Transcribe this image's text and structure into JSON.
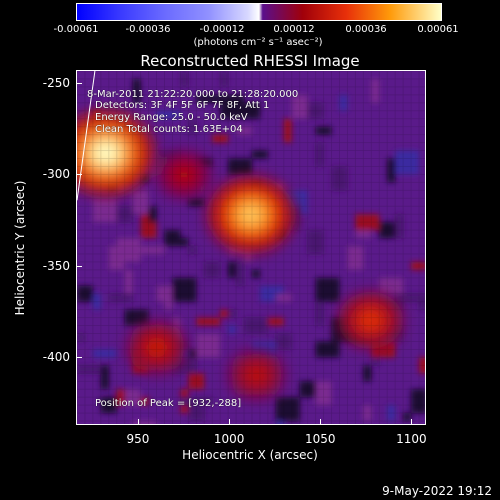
{
  "colorbar": {
    "ticks": [
      "-0.00061",
      "-0.00036",
      "-0.00012",
      "0.00012",
      "0.00036",
      "0.00061"
    ],
    "units": "(photons cm⁻² s⁻¹ asec⁻²)"
  },
  "annotations": {
    "time_range": "8-Mar-2011 21:22:20.000 to 21:28:20.000",
    "detectors": "Detectors: 3F 4F 5F 6F 7F 8F, Att 1",
    "energy_range": "Energy Range: 25.0 - 50.0 keV",
    "clean": "Clean     Total counts: 1.63E+04",
    "peak": "Position of Peak = [932,-288]"
  },
  "timestamp": "9-May-2022 19:12",
  "colors": {
    "background": "#000000",
    "low": "#5a1a8a",
    "mid": "#d02010",
    "high": "#ffffc0"
  },
  "chart_data": {
    "type": "heatmap",
    "title": "Reconstructed RHESSI Image",
    "xlabel": "Heliocentric X (arcsec)",
    "ylabel": "Heliocentric Y (arcsec)",
    "xlim": [
      916,
      1108
    ],
    "ylim": [
      -437,
      -243
    ],
    "xticks": [
      "950",
      "1000",
      "1050",
      "1100"
    ],
    "xtick_values": [
      950,
      1000,
      1050,
      1100
    ],
    "yticks": [
      "-250",
      "-300",
      "-350",
      "-400"
    ],
    "ytick_values": [
      -250,
      -300,
      -350,
      -400
    ],
    "colorbar_range": [
      -0.00061,
      0.00061
    ],
    "sources": [
      {
        "x": 932,
        "y": -288,
        "value": 0.00061
      },
      {
        "x": 1012,
        "y": -322,
        "value": 0.00052
      },
      {
        "x": 1078,
        "y": -380,
        "value": 0.0003
      },
      {
        "x": 960,
        "y": -395,
        "value": 0.00025
      },
      {
        "x": 1015,
        "y": -410,
        "value": 0.00022
      },
      {
        "x": 975,
        "y": -300,
        "value": 0.0002
      }
    ]
  }
}
